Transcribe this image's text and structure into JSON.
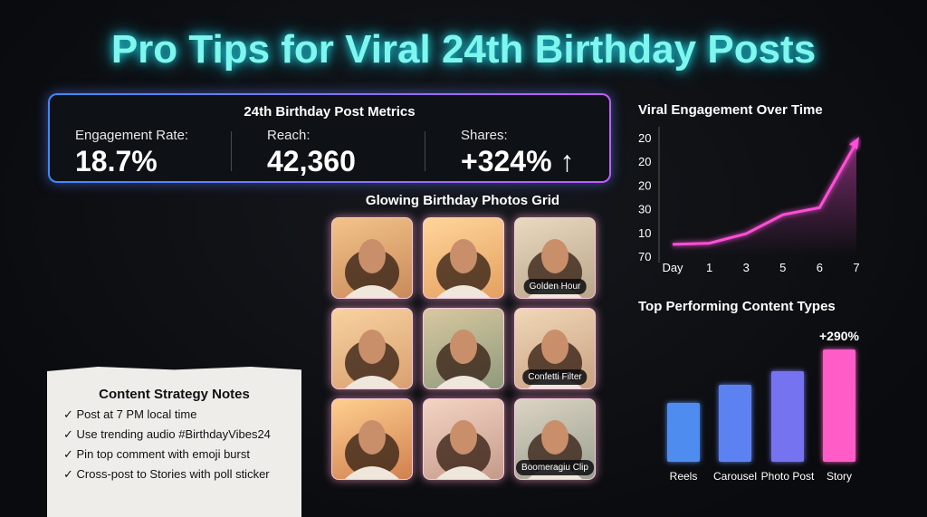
{
  "title": "Pro Tips for Viral 24th Birthday Posts",
  "metrics": {
    "title": "24th Birthday Post Metrics",
    "items": [
      {
        "label": "Engagement Rate:",
        "value": "18.7%"
      },
      {
        "label": "Reach:",
        "value": "42,360"
      },
      {
        "label": "Shares:",
        "value": "+324% ↑"
      }
    ]
  },
  "grid": {
    "title": "Glowing Birthday Photos Grid",
    "captions": [
      "Golden Hour",
      "Confetti Filter",
      "Boomeragiu Clip"
    ]
  },
  "notes": {
    "title": "Content Strategy Notes",
    "items": [
      "✓ Post at 7 PM local time",
      "✓ Use trending audio #BirthdayVibes24",
      "✓ Pin top comment with emoji burst",
      "✓ Cross-post to Stories with poll sticker"
    ]
  },
  "chart_data": [
    {
      "type": "line",
      "title": "Viral Engagement Over Time",
      "categories": [
        "Day",
        "1",
        "3",
        "5",
        "6",
        "7"
      ],
      "y_labels": [
        "20",
        "20",
        "20",
        "30",
        "10",
        "70"
      ],
      "ylim": [
        0,
        100
      ],
      "series": [
        {
          "color": "#ff4fd8",
          "values": [
            10,
            11,
            19,
            35,
            41,
            96
          ]
        }
      ]
    },
    {
      "type": "bar",
      "title": "Top Performing Content Types",
      "categories": [
        "Reels",
        "Carousel",
        "Photo Post",
        "Story"
      ],
      "values": [
        65,
        85,
        100,
        124
      ],
      "ylim": [
        0,
        130
      ],
      "colors": [
        "#4f8cf0",
        "#5b82f2",
        "#7673f0",
        "#ff5cc8"
      ],
      "annotation": "+290%"
    }
  ]
}
